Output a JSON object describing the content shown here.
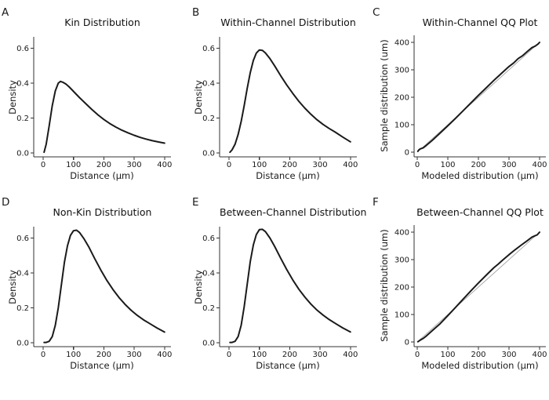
{
  "figure": {
    "background": "#ffffff",
    "curve_color": "#1a1a1a",
    "axis_color": "#333333",
    "reference_line_color": "#999999",
    "text_color": "#1a1a1a"
  },
  "chart_data": [
    {
      "panel_label": "A",
      "title": "Kin Distribution",
      "type": "density",
      "xlabel": "Distance (μm)",
      "ylabel": "Density",
      "xlim": [
        0,
        400
      ],
      "ylim": [
        0,
        0.67
      ],
      "xticks": [
        0,
        100,
        200,
        300,
        400
      ],
      "xtick_labels": [
        "0",
        "100",
        "200",
        "300",
        "400"
      ],
      "yticks": [
        0,
        0.2,
        0.4,
        0.6
      ],
      "ytick_labels": [
        "0.0",
        "0.2",
        "0.4",
        "0.6"
      ],
      "grid": false,
      "x": [
        3,
        10,
        20,
        30,
        40,
        50,
        57,
        65,
        75,
        85,
        95,
        105,
        120,
        140,
        160,
        180,
        200,
        220,
        240,
        260,
        280,
        300,
        320,
        340,
        360,
        380,
        400
      ],
      "y": [
        0.004,
        0.05,
        0.155,
        0.27,
        0.355,
        0.4,
        0.41,
        0.405,
        0.395,
        0.38,
        0.362,
        0.344,
        0.317,
        0.283,
        0.25,
        0.219,
        0.192,
        0.168,
        0.148,
        0.13,
        0.115,
        0.101,
        0.089,
        0.079,
        0.07,
        0.063,
        0.056
      ]
    },
    {
      "panel_label": "B",
      "title": "Within-Channel Distribution",
      "type": "density",
      "xlabel": "Distance (μm)",
      "ylabel": "Density",
      "xlim": [
        0,
        400
      ],
      "ylim": [
        0,
        0.67
      ],
      "xticks": [
        0,
        100,
        200,
        300,
        400
      ],
      "xtick_labels": [
        "0",
        "100",
        "200",
        "300",
        "400"
      ],
      "yticks": [
        0,
        0.2,
        0.4,
        0.6
      ],
      "ytick_labels": [
        "0.0",
        "0.2",
        "0.4",
        "0.6"
      ],
      "grid": false,
      "x": [
        3,
        10,
        20,
        30,
        40,
        50,
        60,
        70,
        80,
        90,
        100,
        110,
        120,
        135,
        150,
        170,
        190,
        210,
        230,
        250,
        270,
        290,
        310,
        330,
        350,
        375,
        400
      ],
      "y": [
        0.004,
        0.018,
        0.05,
        0.105,
        0.18,
        0.27,
        0.37,
        0.46,
        0.53,
        0.572,
        0.59,
        0.588,
        0.573,
        0.54,
        0.5,
        0.443,
        0.39,
        0.341,
        0.296,
        0.256,
        0.221,
        0.19,
        0.163,
        0.14,
        0.119,
        0.091,
        0.064
      ]
    },
    {
      "panel_label": "C",
      "title": "Within-Channel QQ Plot",
      "type": "qq",
      "xlabel": "Modeled distribution (μm)",
      "ylabel": "Sample distribution (um)",
      "xlim": [
        0,
        410
      ],
      "ylim": [
        0,
        410
      ],
      "xticks": [
        0,
        100,
        200,
        300,
        400
      ],
      "xtick_labels": [
        "0",
        "100",
        "200",
        "300",
        "400"
      ],
      "yticks": [
        0,
        100,
        200,
        300,
        400
      ],
      "ytick_labels": [
        "0",
        "100",
        "200",
        "300",
        "400"
      ],
      "grid": false,
      "reference_line": {
        "from": [
          0,
          0
        ],
        "to": [
          400,
          400
        ]
      },
      "x": [
        2,
        5,
        10,
        20,
        30,
        50,
        75,
        100,
        125,
        150,
        175,
        200,
        225,
        250,
        275,
        300,
        315,
        330,
        345,
        360,
        375,
        385,
        395,
        400
      ],
      "y": [
        3,
        8,
        12,
        16,
        25,
        44,
        70,
        96,
        123,
        151,
        179,
        207,
        234,
        261,
        287,
        312,
        325,
        341,
        352,
        367,
        381,
        386,
        394,
        400
      ]
    },
    {
      "panel_label": "D",
      "title": "Non-Kin Distribution",
      "type": "density",
      "xlabel": "Distance (μm)",
      "ylabel": "Density",
      "xlim": [
        0,
        400
      ],
      "ylim": [
        0,
        0.67
      ],
      "xticks": [
        0,
        100,
        200,
        300,
        400
      ],
      "xtick_labels": [
        "0",
        "100",
        "200",
        "300",
        "400"
      ],
      "yticks": [
        0,
        0.2,
        0.4,
        0.6
      ],
      "ytick_labels": [
        "0.0",
        "0.2",
        "0.4",
        "0.6"
      ],
      "grid": false,
      "x": [
        3,
        10,
        20,
        30,
        40,
        50,
        60,
        70,
        80,
        90,
        100,
        110,
        120,
        135,
        150,
        170,
        190,
        210,
        230,
        250,
        270,
        290,
        310,
        330,
        350,
        375,
        400
      ],
      "y": [
        0.002,
        0.002,
        0.008,
        0.035,
        0.1,
        0.2,
        0.33,
        0.46,
        0.555,
        0.615,
        0.642,
        0.645,
        0.632,
        0.595,
        0.55,
        0.482,
        0.417,
        0.357,
        0.305,
        0.259,
        0.22,
        0.186,
        0.157,
        0.132,
        0.111,
        0.085,
        0.061
      ]
    },
    {
      "panel_label": "E",
      "title": "Between-Channel Distribution",
      "type": "density",
      "xlabel": "Distance (μm)",
      "ylabel": "Density",
      "xlim": [
        0,
        400
      ],
      "ylim": [
        0,
        0.67
      ],
      "xticks": [
        0,
        100,
        200,
        300,
        400
      ],
      "xtick_labels": [
        "0",
        "100",
        "200",
        "300",
        "400"
      ],
      "yticks": [
        0,
        0.2,
        0.4,
        0.6
      ],
      "ytick_labels": [
        "0.0",
        "0.2",
        "0.4",
        "0.6"
      ],
      "grid": false,
      "x": [
        3,
        10,
        20,
        30,
        40,
        50,
        60,
        70,
        80,
        90,
        100,
        110,
        120,
        135,
        150,
        170,
        190,
        210,
        230,
        250,
        270,
        290,
        310,
        330,
        350,
        375,
        400
      ],
      "y": [
        0.002,
        0.002,
        0.008,
        0.035,
        0.1,
        0.205,
        0.335,
        0.465,
        0.56,
        0.62,
        0.648,
        0.65,
        0.637,
        0.6,
        0.553,
        0.485,
        0.42,
        0.36,
        0.307,
        0.261,
        0.221,
        0.187,
        0.158,
        0.133,
        0.111,
        0.085,
        0.062
      ]
    },
    {
      "panel_label": "F",
      "title": "Between-Channel QQ Plot",
      "type": "qq",
      "xlabel": "Modeled distribution (μm)",
      "ylabel": "Sample distribution (um)",
      "xlim": [
        0,
        410
      ],
      "ylim": [
        0,
        410
      ],
      "xticks": [
        0,
        100,
        200,
        300,
        400
      ],
      "xtick_labels": [
        "0",
        "100",
        "200",
        "300",
        "400"
      ],
      "yticks": [
        0,
        100,
        200,
        300,
        400
      ],
      "ytick_labels": [
        "0",
        "100",
        "200",
        "300",
        "400"
      ],
      "grid": false,
      "reference_line": {
        "from": [
          0,
          0
        ],
        "to": [
          400,
          400
        ]
      },
      "x": [
        2,
        5,
        10,
        20,
        30,
        50,
        75,
        100,
        125,
        150,
        175,
        200,
        225,
        250,
        265,
        280,
        300,
        320,
        340,
        360,
        375,
        385,
        392,
        400
      ],
      "y": [
        1,
        3,
        7,
        13,
        22,
        42,
        67,
        96,
        126,
        156,
        186,
        215,
        243,
        270,
        284,
        299,
        318,
        336,
        353,
        369,
        382,
        387,
        390,
        400
      ]
    }
  ]
}
